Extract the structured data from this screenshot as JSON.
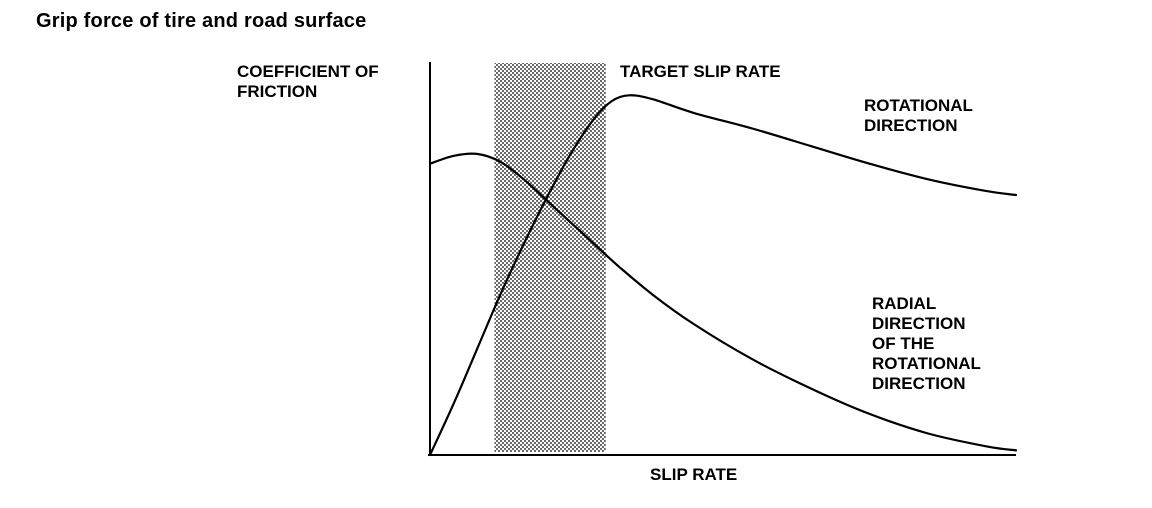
{
  "page": {
    "title": "Grip force of tire and road surface"
  },
  "colors": {
    "background": "#ffffff",
    "axis": "#000000",
    "curve": "#000000",
    "text": "#000000",
    "band_dot": "#5f5f5f"
  },
  "chart_data": {
    "type": "line",
    "title": "Grip force of tire and road surface",
    "xlabel": "SLIP RATE",
    "ylabel": "COEFFICIENT OF FRICTION",
    "x_range": [
      0,
      100
    ],
    "y_range": [
      0,
      1
    ],
    "grid": false,
    "axis_ticks": "none",
    "target_band": {
      "label": "TARGET SLIP RATE",
      "x_start": 11,
      "x_end": 30,
      "style": "halftone-dots"
    },
    "annotations": {
      "target_band_label": "TARGET SLIP RATE",
      "rotational_label": "ROTATIONAL DIRECTION",
      "radial_label_lines": [
        "RADIAL",
        "DIRECTION",
        "OF THE",
        "ROTATIONAL",
        "DIRECTION"
      ]
    },
    "series": [
      {
        "name": "ROTATIONAL DIRECTION",
        "points": [
          [
            0,
            0
          ],
          [
            4,
            0.13
          ],
          [
            8,
            0.27
          ],
          [
            12,
            0.41
          ],
          [
            16,
            0.54
          ],
          [
            20,
            0.66
          ],
          [
            24,
            0.77
          ],
          [
            28,
            0.86
          ],
          [
            31,
            0.905
          ],
          [
            34,
            0.92
          ],
          [
            38,
            0.91
          ],
          [
            45,
            0.875
          ],
          [
            55,
            0.835
          ],
          [
            65,
            0.79
          ],
          [
            75,
            0.745
          ],
          [
            85,
            0.705
          ],
          [
            95,
            0.675
          ],
          [
            100,
            0.665
          ]
        ]
      },
      {
        "name": "RADIAL DIRECTION OF THE ROTATIONAL DIRECTION",
        "points": [
          [
            0,
            0.745
          ],
          [
            4,
            0.765
          ],
          [
            8,
            0.77
          ],
          [
            12,
            0.75
          ],
          [
            16,
            0.705
          ],
          [
            20,
            0.65
          ],
          [
            24,
            0.595
          ],
          [
            28,
            0.54
          ],
          [
            32,
            0.485
          ],
          [
            38,
            0.41
          ],
          [
            45,
            0.335
          ],
          [
            55,
            0.245
          ],
          [
            65,
            0.17
          ],
          [
            75,
            0.105
          ],
          [
            85,
            0.055
          ],
          [
            95,
            0.022
          ],
          [
            100,
            0.012
          ]
        ]
      }
    ]
  }
}
